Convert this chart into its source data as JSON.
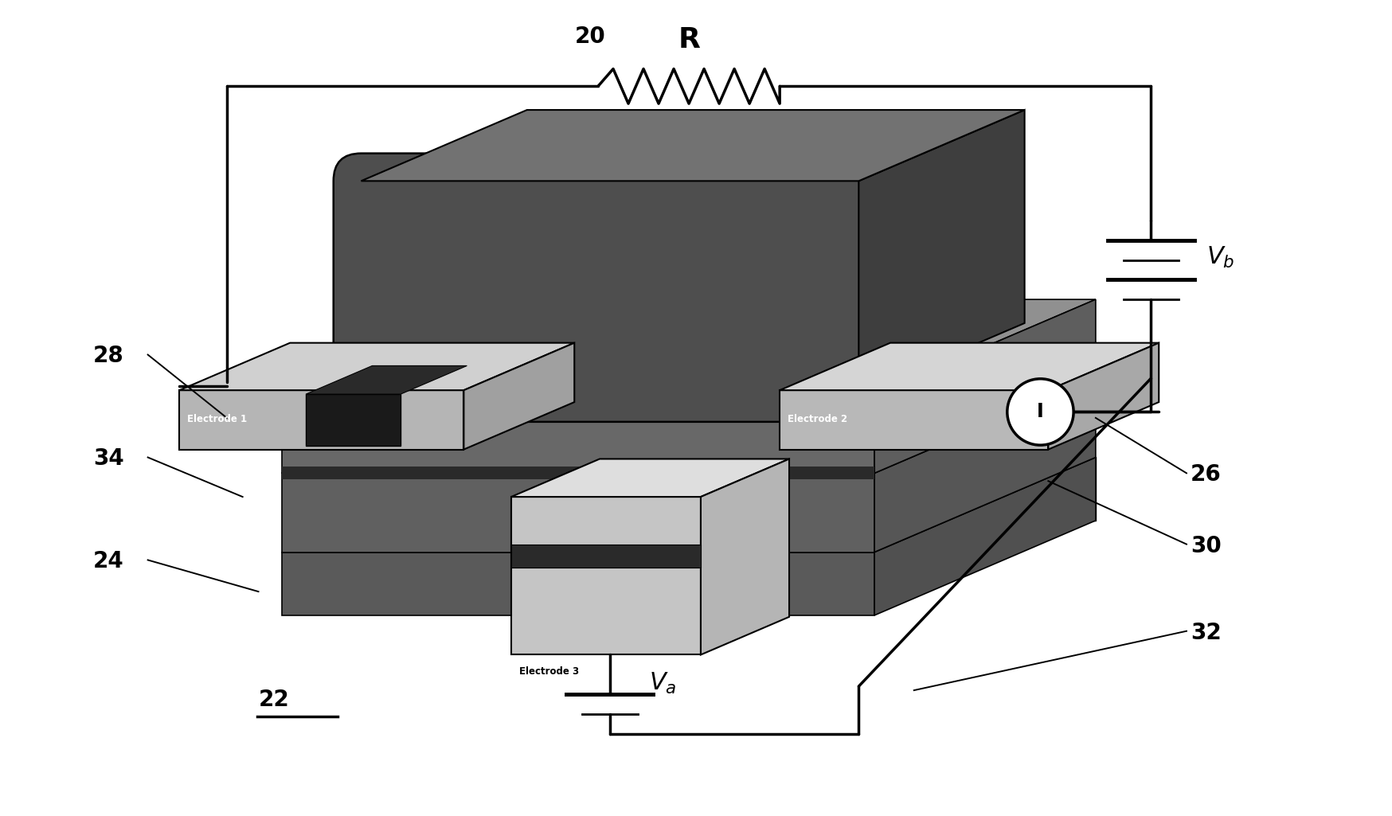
{
  "fig_width": 17.49,
  "fig_height": 10.25,
  "bg_color": "#ffffff",
  "label_20": "20",
  "label_22": "22",
  "label_24": "24",
  "label_26": "26",
  "label_28": "28",
  "label_30": "30",
  "label_32": "32",
  "label_34": "34",
  "label_R": "R",
  "label_I": "I",
  "label_e1": "Electrode 1",
  "label_e2": "Electrode 2",
  "label_e3": "Electrode 3",
  "c_dark": "#4a4a4a",
  "c_med": "#707070",
  "c_light": "#a8a8a8",
  "c_lighter": "#c8c8c8",
  "c_black": "#111111",
  "c_stripe": "#888888"
}
